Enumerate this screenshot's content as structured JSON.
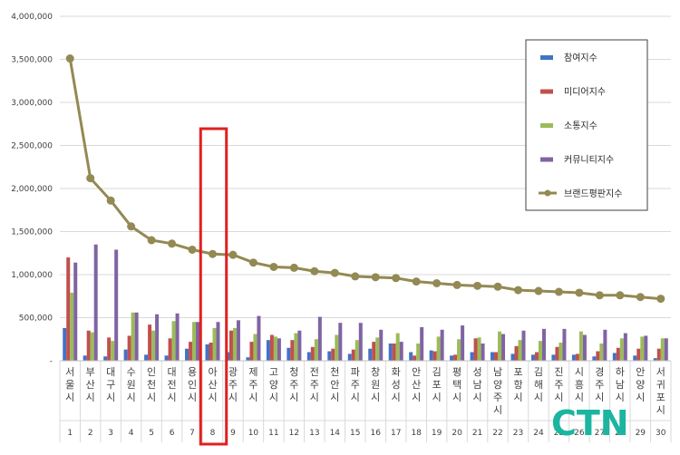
{
  "chart_data": {
    "type": "bar",
    "title": "",
    "xlabel": "",
    "ylabel": "",
    "ylim": [
      0,
      4000000
    ],
    "yticks": [
      0,
      500000,
      1000000,
      1500000,
      2000000,
      2500000,
      3000000,
      3500000,
      4000000
    ],
    "ytick_labels": [
      "-",
      "500,000",
      "1,000,000",
      "1,500,000",
      "2,000,000",
      "2,500,000",
      "3,000,000",
      "3,500,000",
      "4,000,000"
    ],
    "grid": true,
    "legend_position": "top-right",
    "categories": [
      "서울시",
      "부산시",
      "대구시",
      "수원시",
      "인천시",
      "대전시",
      "용인시",
      "아산시",
      "광주시",
      "제주시",
      "고양시",
      "청주시",
      "전주시",
      "천안시",
      "파주시",
      "창원시",
      "화성시",
      "안산시",
      "김포시",
      "평택시",
      "성남시",
      "남양주시",
      "포항시",
      "김해시",
      "진주시",
      "시흥시",
      "경주시",
      "하남시",
      "안양시",
      "서귀포시"
    ],
    "ranks": [
      "1",
      "2",
      "3",
      "4",
      "5",
      "6",
      "7",
      "8",
      "9",
      "10",
      "11",
      "12",
      "13",
      "14",
      "15",
      "16",
      "17",
      "18",
      "19",
      "20",
      "21",
      "22",
      "23",
      "24",
      "25",
      "26",
      "27",
      "28",
      "29",
      "30"
    ],
    "series": [
      {
        "name": "참여지수",
        "type": "bar",
        "color": "#4472C4",
        "values": [
          380000,
          60000,
          50000,
          130000,
          70000,
          60000,
          140000,
          190000,
          100000,
          40000,
          240000,
          150000,
          100000,
          110000,
          80000,
          140000,
          200000,
          100000,
          120000,
          60000,
          100000,
          100000,
          80000,
          70000,
          70000,
          70000,
          50000,
          90000,
          60000,
          30000
        ]
      },
      {
        "name": "미디어지수",
        "type": "bar",
        "color": "#C0504D",
        "values": [
          1200000,
          350000,
          270000,
          290000,
          420000,
          260000,
          220000,
          210000,
          350000,
          220000,
          300000,
          240000,
          160000,
          140000,
          130000,
          220000,
          200000,
          60000,
          110000,
          70000,
          260000,
          100000,
          170000,
          100000,
          160000,
          80000,
          110000,
          150000,
          140000,
          140000
        ]
      },
      {
        "name": "소통지수",
        "type": "bar",
        "color": "#9BBB59",
        "values": [
          790000,
          330000,
          230000,
          560000,
          350000,
          460000,
          450000,
          380000,
          380000,
          310000,
          280000,
          320000,
          250000,
          300000,
          240000,
          270000,
          320000,
          200000,
          280000,
          250000,
          270000,
          340000,
          240000,
          230000,
          210000,
          340000,
          200000,
          260000,
          280000,
          260000
        ]
      },
      {
        "name": "커뮤니티지수",
        "type": "bar",
        "color": "#8064A2",
        "values": [
          1140000,
          1350000,
          1290000,
          560000,
          540000,
          550000,
          450000,
          450000,
          470000,
          520000,
          260000,
          350000,
          510000,
          440000,
          440000,
          360000,
          220000,
          390000,
          360000,
          410000,
          200000,
          310000,
          350000,
          370000,
          370000,
          300000,
          360000,
          320000,
          290000,
          260000
        ]
      },
      {
        "name": "브랜드평판지수",
        "type": "line",
        "color": "#938953",
        "values": [
          3510000,
          2120000,
          1860000,
          1560000,
          1400000,
          1360000,
          1290000,
          1240000,
          1230000,
          1140000,
          1090000,
          1080000,
          1040000,
          1020000,
          980000,
          970000,
          960000,
          920000,
          900000,
          880000,
          870000,
          860000,
          820000,
          810000,
          800000,
          790000,
          760000,
          760000,
          740000,
          720000
        ]
      }
    ],
    "highlight_category": "아산시"
  },
  "brand": {
    "logo_text": "CTN",
    "color": "#1BB5A0"
  }
}
